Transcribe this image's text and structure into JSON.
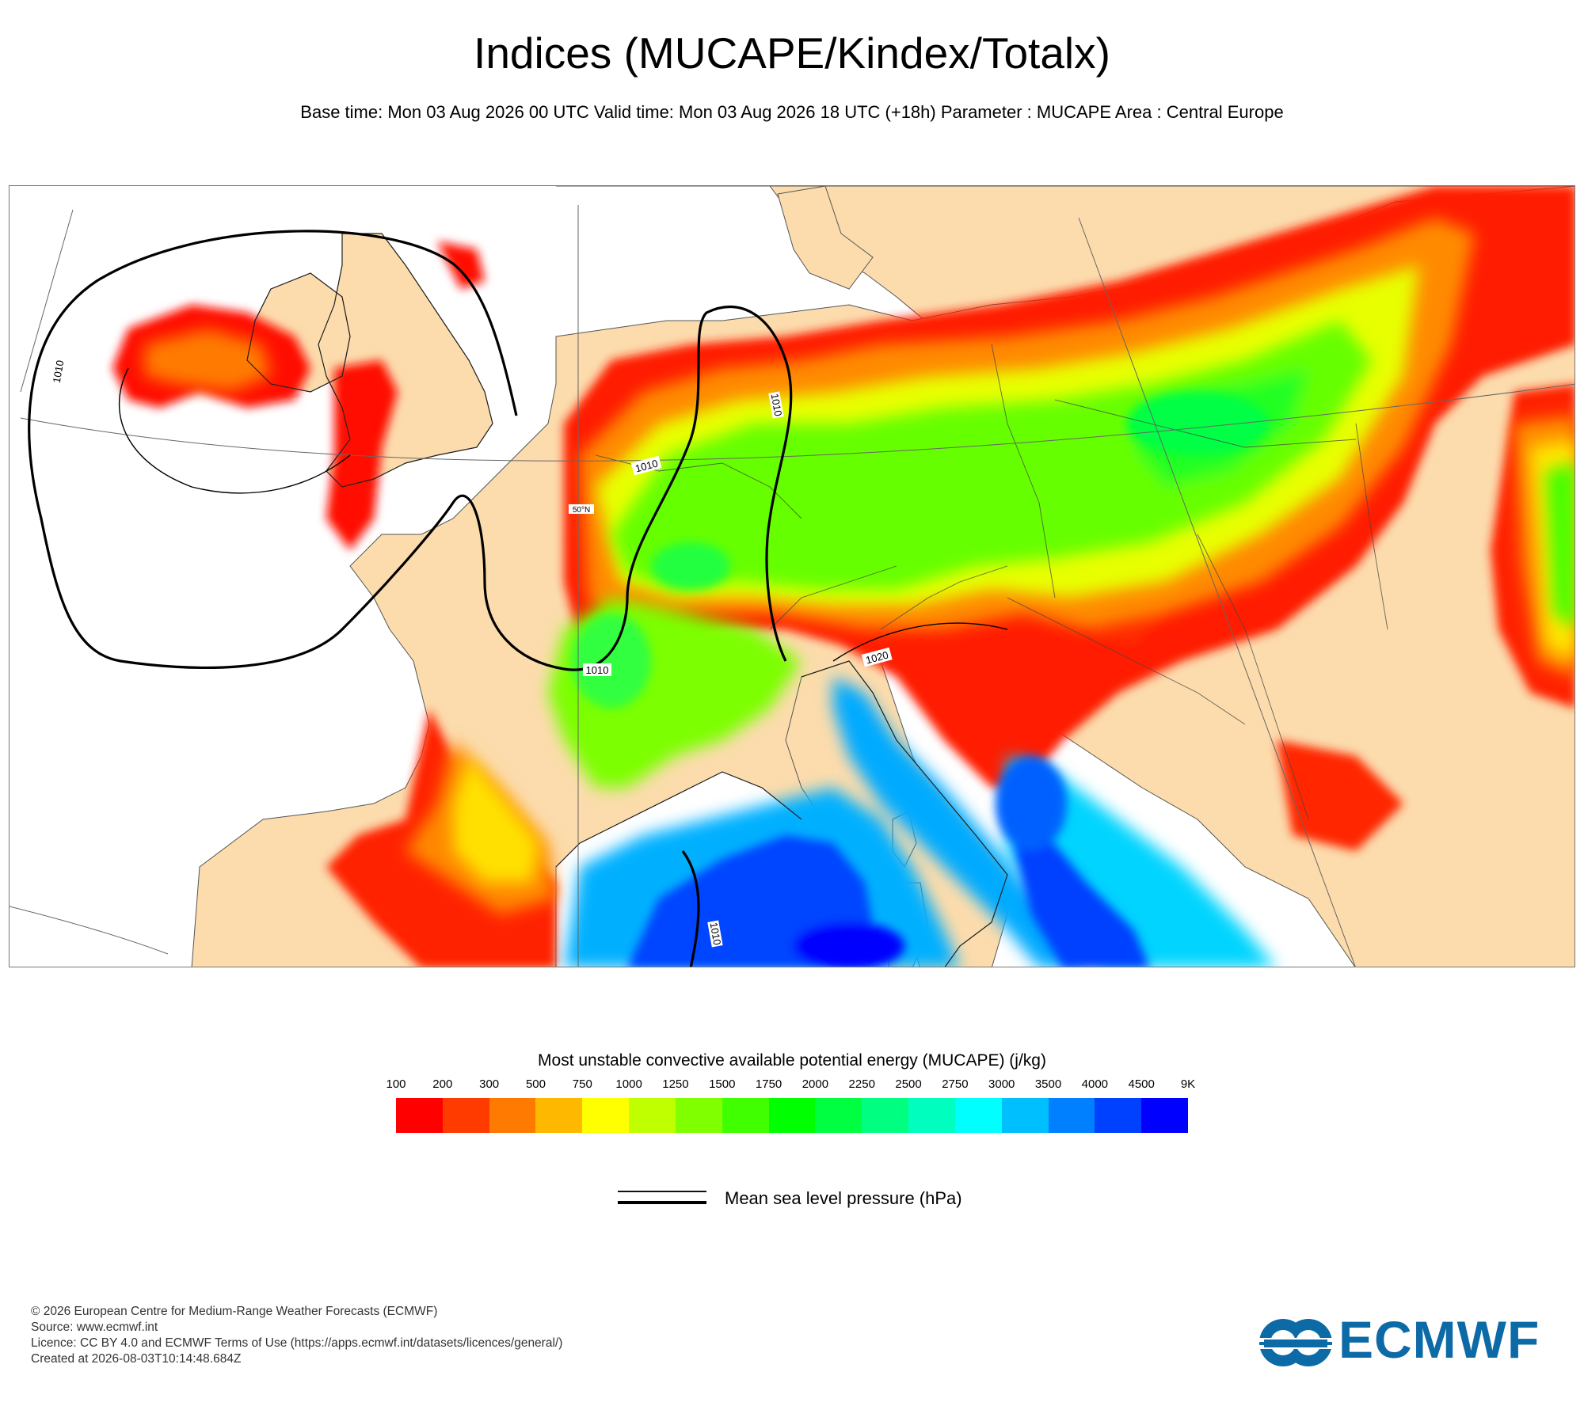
{
  "header": {
    "title": "Indices (MUCAPE/Kindex/Totalx)",
    "subtitle": "Base time: Mon 03 Aug 2026 00 UTC Valid time: Mon 03 Aug 2026 18 UTC (+18h) Parameter : MUCAPE Area : Central Europe"
  },
  "map": {
    "area": "Central Europe",
    "land_color": "#fcdcac",
    "sea_color": "#ffffff",
    "isobar_labels": [
      "1010",
      "1010",
      "1010",
      "1010",
      "1020",
      "1010"
    ],
    "graticule_label": "50°N"
  },
  "legend": {
    "title": "Most unstable convective available potential energy (MUCAPE) (j/kg)",
    "ticks": [
      "100",
      "200",
      "300",
      "500",
      "750",
      "1000",
      "1250",
      "1500",
      "1750",
      "2000",
      "2250",
      "2500",
      "2750",
      "3000",
      "3500",
      "4000",
      "4500",
      "9K"
    ],
    "colors": [
      "#ff0000",
      "#ff3b00",
      "#ff7a00",
      "#ffb800",
      "#ffff00",
      "#bfff00",
      "#80ff00",
      "#40ff00",
      "#00ff00",
      "#00ff40",
      "#00ff80",
      "#00ffbf",
      "#00ffff",
      "#00bfff",
      "#0080ff",
      "#0040ff",
      "#0000ff"
    ],
    "isobar_label": "Mean sea level pressure (hPa)"
  },
  "credits": {
    "line1": "© 2026 European Centre for Medium-Range Weather Forecasts (ECMWF)",
    "line2": "Source: www.ecmwf.int",
    "line3": "Licence: CC BY 4.0 and ECMWF Terms of Use (https://apps.ecmwf.int/datasets/licences/general/)",
    "line4": "Created at 2026-08-03T10:14:48.684Z"
  },
  "logo": {
    "text": "ECMWF",
    "color": "#0c6aa6"
  }
}
